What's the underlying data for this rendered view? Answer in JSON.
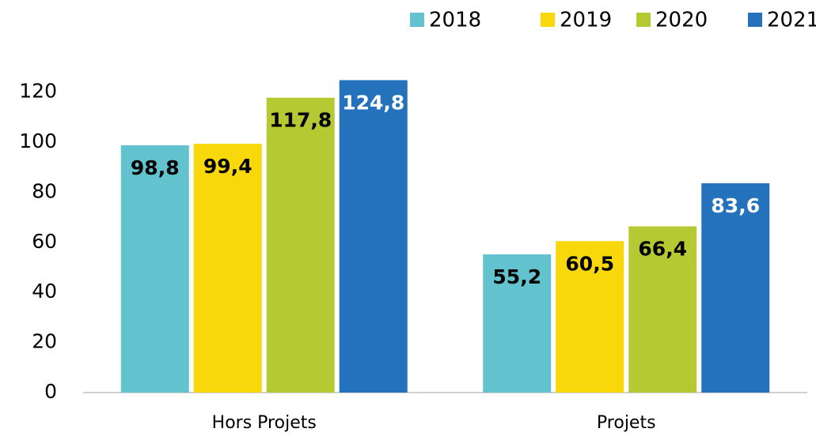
{
  "chart_data": {
    "type": "bar",
    "categories": [
      "Hors Projets",
      "Projets"
    ],
    "series": [
      {
        "name": "2018",
        "color": "#62c3cf",
        "values": [
          98.8,
          55.2
        ],
        "value_labels": [
          "98,8",
          "55,2"
        ]
      },
      {
        "name": "2019",
        "color": "#f8d80a",
        "values": [
          99.4,
          60.5
        ],
        "value_labels": [
          "99,4",
          "60,5"
        ]
      },
      {
        "name": "2020",
        "color": "#b5c932",
        "values": [
          117.8,
          66.4
        ],
        "value_labels": [
          "117,8",
          "66,4"
        ]
      },
      {
        "name": "2021",
        "color": "#2472bb",
        "values": [
          124.8,
          83.6
        ],
        "value_labels": [
          "124,8",
          "83,6"
        ]
      }
    ],
    "ylim": [
      0,
      130
    ],
    "yticks": [
      0,
      20,
      40,
      60,
      80,
      100,
      120
    ],
    "grid": false,
    "legend": "top-right"
  }
}
